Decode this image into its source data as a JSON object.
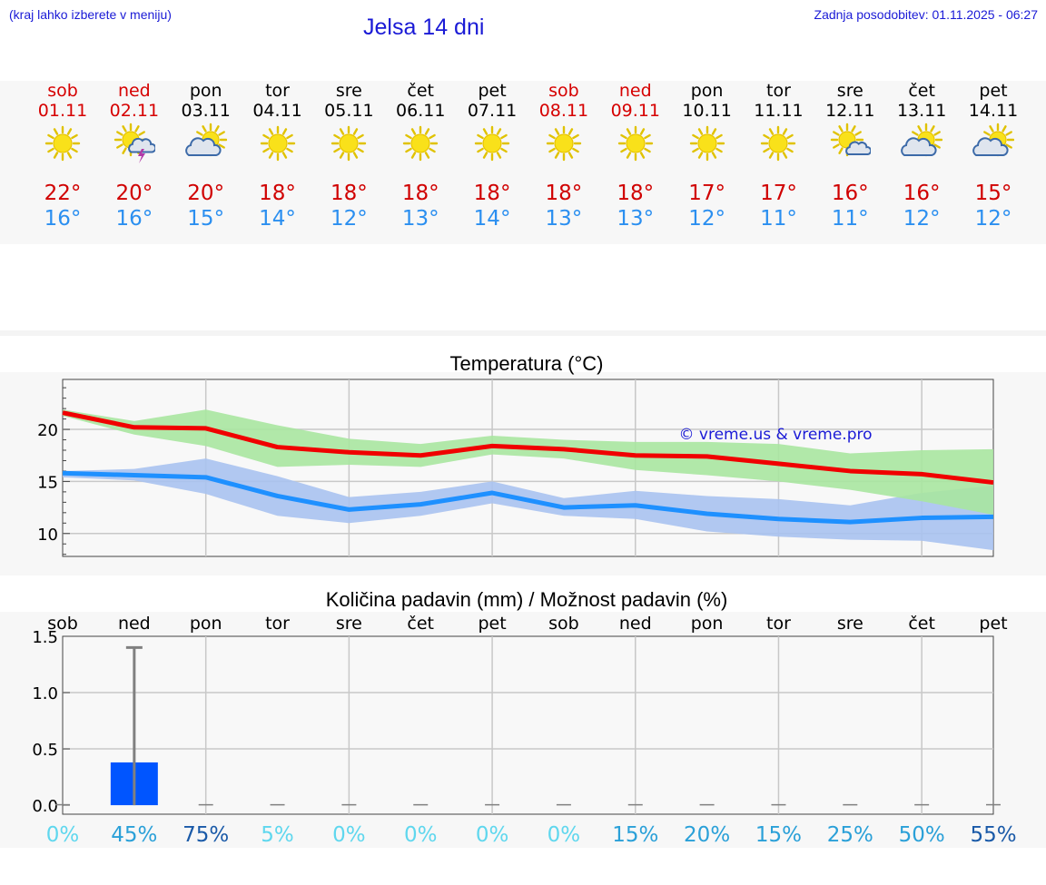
{
  "header": {
    "note": "(kraj lahko izberete v meniju)",
    "title": "Jelsa 14 dni",
    "updated": "Zadnja posodobitev: 01.11.2025 - 06:27"
  },
  "forecast": {
    "days": [
      {
        "name": "sob",
        "date": "01.11",
        "icon": "sun-icon",
        "weekend": true,
        "tmax": "22°",
        "tmin": "16°"
      },
      {
        "name": "ned",
        "date": "02.11",
        "icon": "sun-cloud-thunder-icon",
        "weekend": true,
        "tmax": "20°",
        "tmin": "16°"
      },
      {
        "name": "pon",
        "date": "03.11",
        "icon": "sun-behind-cloud-icon",
        "weekend": false,
        "tmax": "20°",
        "tmin": "15°"
      },
      {
        "name": "tor",
        "date": "04.11",
        "icon": "sun-icon",
        "weekend": false,
        "tmax": "18°",
        "tmin": "14°"
      },
      {
        "name": "sre",
        "date": "05.11",
        "icon": "sun-icon",
        "weekend": false,
        "tmax": "18°",
        "tmin": "12°"
      },
      {
        "name": "čet",
        "date": "06.11",
        "icon": "sun-icon",
        "weekend": false,
        "tmax": "18°",
        "tmin": "13°"
      },
      {
        "name": "pet",
        "date": "07.11",
        "icon": "sun-icon",
        "weekend": false,
        "tmax": "18°",
        "tmin": "14°"
      },
      {
        "name": "sob",
        "date": "08.11",
        "icon": "sun-icon",
        "weekend": true,
        "tmax": "18°",
        "tmin": "13°"
      },
      {
        "name": "ned",
        "date": "09.11",
        "icon": "sun-icon",
        "weekend": true,
        "tmax": "18°",
        "tmin": "13°"
      },
      {
        "name": "pon",
        "date": "10.11",
        "icon": "sun-icon",
        "weekend": false,
        "tmax": "17°",
        "tmin": "12°"
      },
      {
        "name": "tor",
        "date": "11.11",
        "icon": "sun-icon",
        "weekend": false,
        "tmax": "17°",
        "tmin": "11°"
      },
      {
        "name": "sre",
        "date": "12.11",
        "icon": "sun-small-cloud-icon",
        "weekend": false,
        "tmax": "16°",
        "tmin": "11°"
      },
      {
        "name": "čet",
        "date": "13.11",
        "icon": "sun-behind-cloud-icon",
        "weekend": false,
        "tmax": "16°",
        "tmin": "12°"
      },
      {
        "name": "pet",
        "date": "14.11",
        "icon": "sun-behind-cloud-icon",
        "weekend": false,
        "tmax": "15°",
        "tmin": "12°"
      }
    ]
  },
  "colors": {
    "max_line": "#f00000",
    "max_band": "#a8e6a0",
    "min_line": "#1e90ff",
    "min_band": "#a8c2f0",
    "overlap_band": "#7bc4a8",
    "bar": "#0055ff",
    "whisker": "#808080",
    "watermark": "#1a1ad6",
    "prob_light": "#5fd7ee",
    "prob_mid": "#2aa0d8",
    "prob_dark": "#1a5aa8"
  },
  "chart_data": [
    {
      "type": "line",
      "title": "Temperatura (°C)",
      "watermark": "© vreme.us & vreme.pro",
      "x": [
        0,
        1,
        2,
        3,
        4,
        5,
        6,
        7,
        8,
        9,
        10,
        11,
        12,
        13
      ],
      "ylim": [
        7.8,
        24.8
      ],
      "yticks": [
        10,
        15,
        20
      ],
      "ytick_labels": [
        "10",
        "15",
        "20"
      ],
      "grid": true,
      "series": [
        {
          "name": "max",
          "values": [
            21.6,
            20.2,
            20.1,
            18.3,
            17.8,
            17.5,
            18.4,
            18.1,
            17.5,
            17.4,
            16.7,
            16.0,
            15.7,
            14.9
          ]
        },
        {
          "name": "max_upper",
          "values": [
            21.9,
            20.8,
            21.9,
            20.4,
            19.1,
            18.6,
            19.4,
            19.0,
            18.8,
            18.8,
            18.6,
            17.7,
            18.0,
            18.1
          ]
        },
        {
          "name": "max_lower",
          "values": [
            21.3,
            19.5,
            18.4,
            16.4,
            16.6,
            16.4,
            17.6,
            17.2,
            16.1,
            15.6,
            15.0,
            14.2,
            13.1,
            11.8
          ]
        },
        {
          "name": "min",
          "values": [
            15.8,
            15.6,
            15.4,
            13.6,
            12.3,
            12.8,
            13.9,
            12.5,
            12.7,
            11.9,
            11.4,
            11.1,
            11.5,
            11.6
          ]
        },
        {
          "name": "min_upper",
          "values": [
            16.0,
            16.2,
            17.2,
            15.5,
            13.5,
            14.0,
            15.0,
            13.4,
            14.1,
            13.6,
            13.3,
            12.7,
            13.9,
            14.6
          ]
        },
        {
          "name": "min_lower",
          "values": [
            15.4,
            15.1,
            13.8,
            11.7,
            11.0,
            11.7,
            12.9,
            11.7,
            11.4,
            10.2,
            9.7,
            9.4,
            9.3,
            8.4
          ]
        }
      ]
    },
    {
      "type": "bar",
      "title": "Količina padavin (mm) / Možnost padavin (%)",
      "categories": [
        "sob",
        "ned",
        "pon",
        "tor",
        "sre",
        "čet",
        "pet",
        "sob",
        "ned",
        "pon",
        "tor",
        "sre",
        "čet",
        "pet"
      ],
      "values": [
        0,
        0.38,
        0,
        0,
        0,
        0,
        0,
        0,
        0,
        0,
        0,
        0,
        0,
        0
      ],
      "error_upper": [
        0,
        1.4,
        0,
        0,
        0,
        0,
        0,
        0,
        0,
        0,
        0,
        0,
        0,
        0
      ],
      "probability_labels": [
        "0%",
        "45%",
        "75%",
        "5%",
        "0%",
        "0%",
        "0%",
        "0%",
        "15%",
        "20%",
        "15%",
        "25%",
        "50%",
        "55%"
      ],
      "probability_values": [
        0,
        45,
        75,
        5,
        0,
        0,
        0,
        0,
        15,
        20,
        15,
        25,
        50,
        55
      ],
      "ylim": [
        -0.08,
        1.5
      ],
      "yticks": [
        0,
        0.5,
        1.0,
        1.5
      ],
      "ytick_labels": [
        "0.0",
        "0.5",
        "1.0",
        "1.5"
      ],
      "grid": true
    }
  ]
}
